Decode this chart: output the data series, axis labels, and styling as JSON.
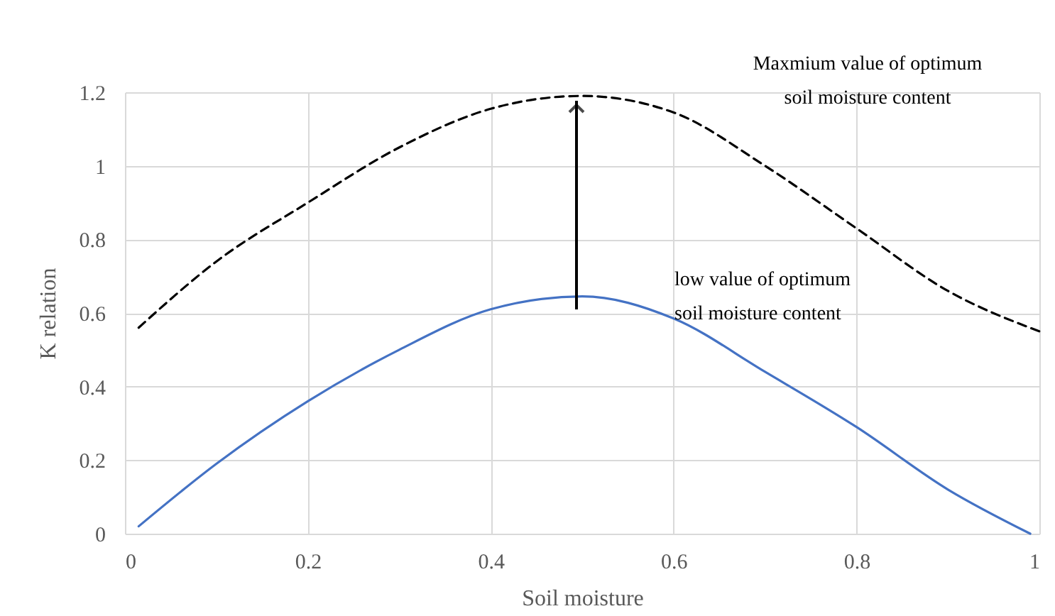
{
  "chart_data": {
    "type": "line",
    "xlabel": "Soil moisture",
    "ylabel": "K relation",
    "xlim": [
      0,
      1
    ],
    "ylim": [
      0,
      1.2
    ],
    "xticks": [
      0,
      0.2,
      0.4,
      0.6,
      0.8,
      1
    ],
    "yticks": [
      0,
      0.2,
      0.4,
      0.6,
      0.8,
      1,
      1.2
    ],
    "grid": true,
    "x": [
      0.015,
      0.1,
      0.2,
      0.3,
      0.4,
      0.5,
      0.6,
      0.7,
      0.8,
      0.9,
      0.99
    ],
    "series": [
      {
        "color": "#4472c4",
        "line_style": "solid",
        "values": [
          0.02,
          0.19,
          0.36,
          0.5,
          0.61,
          0.645,
          0.585,
          0.44,
          0.29,
          0.12,
          0.0
        ]
      },
      {
        "color": "#000000",
        "line_style": "dashed",
        "x": [
          0.015,
          0.1,
          0.2,
          0.3,
          0.4,
          0.5,
          0.6,
          0.7,
          0.8,
          0.9,
          1.0
        ],
        "values": [
          0.56,
          0.74,
          0.9,
          1.05,
          1.155,
          1.19,
          1.145,
          1.0,
          0.83,
          0.66,
          0.55
        ]
      }
    ],
    "annotations": [
      "Maxmium value of optimum\n soil moisture content",
      "low value of optimum\nsoil moisture content"
    ]
  }
}
